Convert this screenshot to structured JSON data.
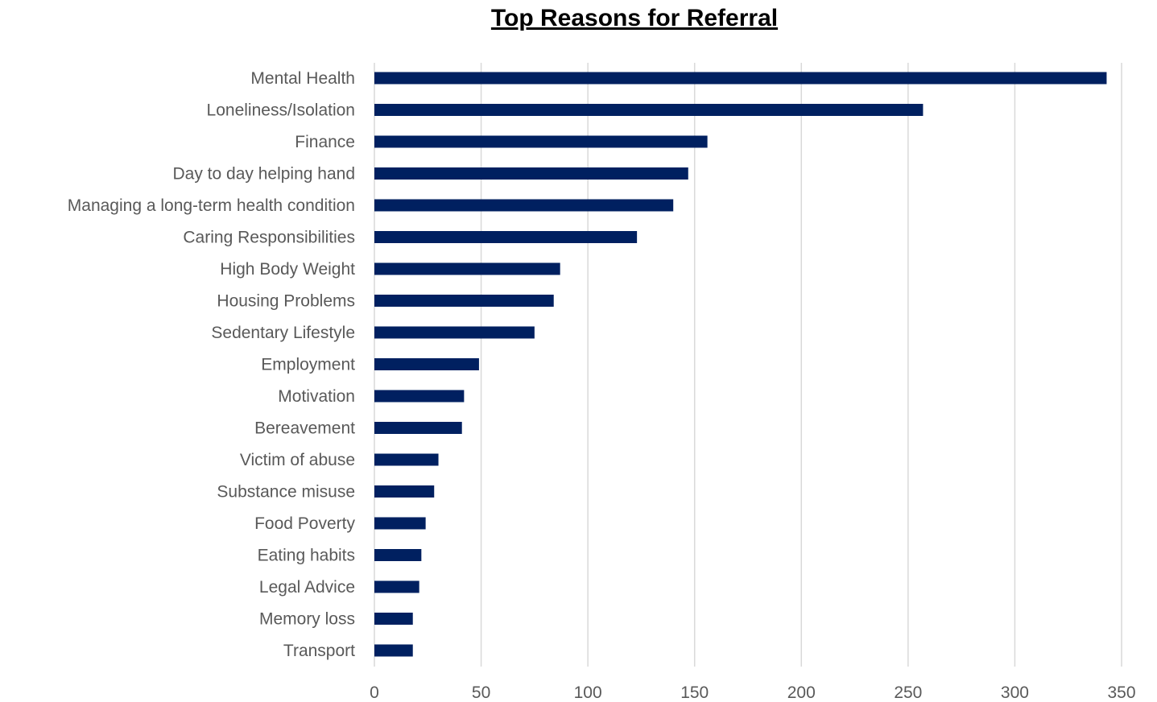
{
  "chart_data": {
    "type": "bar",
    "orientation": "horizontal",
    "title": "Top Reasons for Referral",
    "xlabel": "",
    "ylabel": "",
    "categories": [
      "Mental Health",
      "Loneliness/Isolation",
      "Finance",
      "Day to day helping hand",
      "Managing a long-term health condition",
      "Caring Responsibilities",
      "High Body Weight",
      "Housing Problems",
      "Sedentary Lifestyle",
      "Employment",
      "Motivation",
      "Bereavement",
      "Victim of abuse",
      "Substance misuse",
      "Food Poverty",
      "Eating habits",
      "Legal Advice",
      "Memory loss",
      "Transport"
    ],
    "values": [
      343,
      257,
      156,
      147,
      140,
      123,
      87,
      84,
      75,
      49,
      42,
      41,
      30,
      28,
      24,
      22,
      21,
      18,
      18
    ],
    "xlim": [
      0,
      350
    ],
    "xticks": [
      0,
      50,
      100,
      150,
      200,
      250,
      300,
      350
    ],
    "grid": "vertical",
    "legend": "none",
    "bar_color": "#002060",
    "grid_color": "#d9d9d9"
  }
}
